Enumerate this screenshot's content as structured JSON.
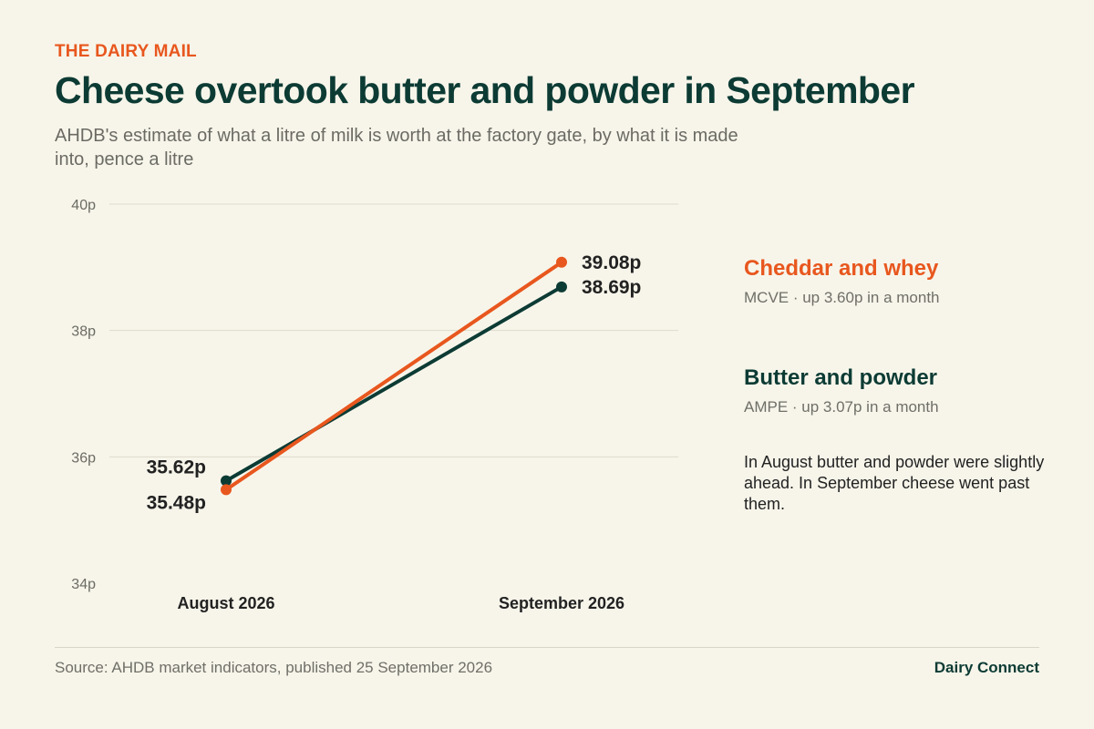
{
  "header": {
    "kicker": "THE DAIRY MAIL",
    "title": "Cheese overtook butter and powder in September",
    "subtitle": "AHDB's estimate of what a litre of milk is worth at the factory gate, by what it is made into, pence a litre"
  },
  "legend": [
    {
      "name": "Cheddar and whey",
      "desc": "MCVE · up 3.60p in a month"
    },
    {
      "name": "Butter and powder",
      "desc": "AMPE · up 3.07p in a month"
    }
  ],
  "note": "In August butter and powder were slightly ahead. In September cheese went past them.",
  "footer": {
    "source": "Source: AHDB market indicators, published 25 September 2026",
    "brand": "Dairy Connect"
  },
  "colors": {
    "cheese": "#e8571e",
    "butter": "#0c3b34",
    "grid": "#dedbcd",
    "tick": "#6b6b64",
    "label": "#222222"
  },
  "chart_data": {
    "type": "line",
    "x": [
      "August 2026",
      "September 2026"
    ],
    "ylim": [
      34,
      40
    ],
    "yticks": [
      34,
      36,
      38,
      40
    ],
    "ytick_labels": [
      "34p",
      "36p",
      "38p",
      "40p"
    ],
    "grid": true,
    "series": [
      {
        "name": "Cheddar and whey",
        "color": "#e8571e",
        "values": [
          35.48,
          39.08
        ],
        "labels": [
          "35.48p",
          "39.08p"
        ]
      },
      {
        "name": "Butter and powder",
        "color": "#0c3b34",
        "values": [
          35.62,
          38.69
        ],
        "labels": [
          "35.62p",
          "38.69p"
        ]
      }
    ]
  }
}
